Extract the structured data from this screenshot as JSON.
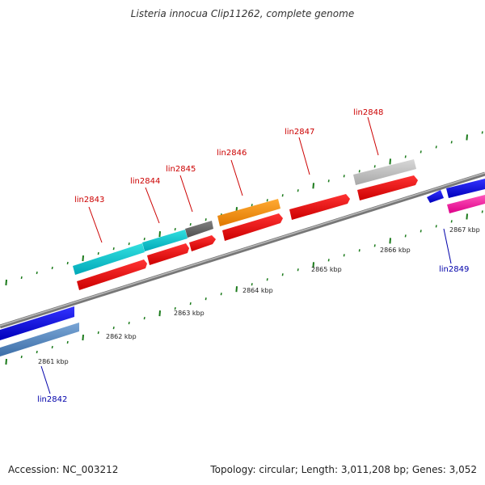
{
  "title": "Listeria innocua Clip11262, complete genome",
  "footer": {
    "accession": "Accession: NC_003212",
    "summary": "Topology: circular; Length: 3,011,208 bp; Genes: 3,052"
  },
  "colors": {
    "label_forward": "#cc0000",
    "label_reverse": "#0000aa",
    "tick": "#1a7a1a",
    "backbone": "#888888"
  },
  "ticks": [
    {
      "label": "2861 kbp"
    },
    {
      "label": "2862 kbp"
    },
    {
      "label": "2863 kbp"
    },
    {
      "label": "2864 kbp"
    },
    {
      "label": "2865 kbp"
    },
    {
      "label": "2866 kbp"
    },
    {
      "label": "2867 kbp"
    }
  ],
  "gene_labels": [
    {
      "name": "lin2842",
      "strand": "reverse"
    },
    {
      "name": "lin2843",
      "strand": "forward"
    },
    {
      "name": "lin2844",
      "strand": "forward"
    },
    {
      "name": "lin2845",
      "strand": "forward"
    },
    {
      "name": "lin2846",
      "strand": "forward"
    },
    {
      "name": "lin2847",
      "strand": "forward"
    },
    {
      "name": "lin2848",
      "strand": "forward"
    },
    {
      "name": "lin2849",
      "strand": "reverse"
    }
  ]
}
